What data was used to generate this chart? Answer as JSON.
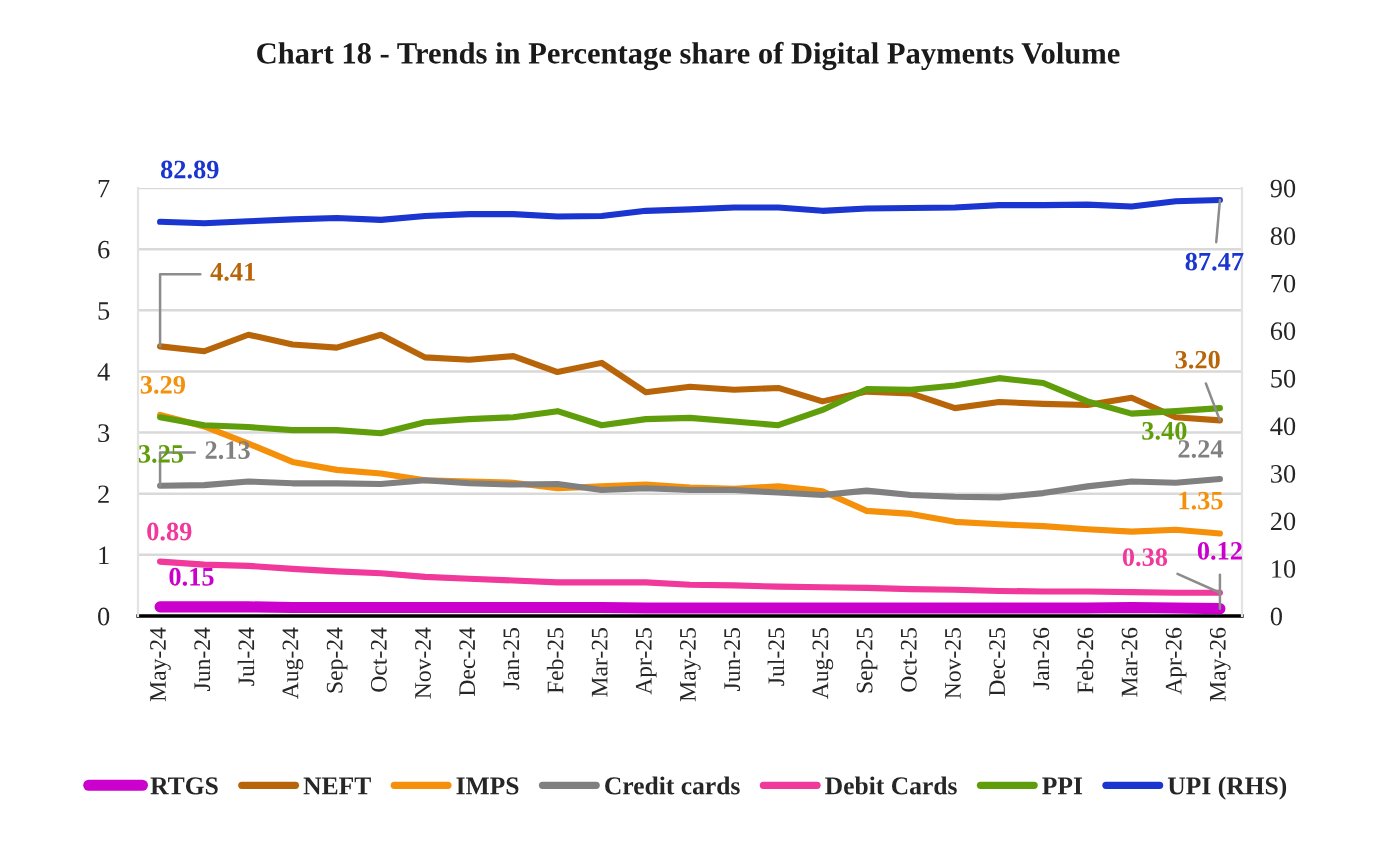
{
  "chart_data": {
    "type": "line",
    "title": "Chart 18 - Trends in Percentage share of Digital Payments Volume",
    "categories": [
      "May-24",
      "Jun-24",
      "Jul-24",
      "Aug-24",
      "Sep-24",
      "Oct-24",
      "Nov-24",
      "Dec-24",
      "Jan-25",
      "Feb-25",
      "Mar-25",
      "Apr-25",
      "May-25",
      "Jun-25",
      "Jul-25",
      "Aug-25",
      "Sep-25",
      "Oct-25",
      "Nov-25",
      "Dec-25",
      "Jan-26",
      "Feb-26",
      "Mar-26",
      "Apr-26",
      "May-26"
    ],
    "ylim": [
      0,
      7
    ],
    "yticks": [
      0,
      1,
      2,
      3,
      4,
      5,
      6,
      7
    ],
    "y2lim": [
      0,
      90
    ],
    "y2ticks": [
      0,
      10,
      20,
      30,
      40,
      50,
      60,
      70,
      80,
      90
    ],
    "grid": "y",
    "legend": "bottom",
    "line_style": "solid",
    "series": [
      {
        "name": "RTGS",
        "color": "#cc00cc",
        "values": [
          0.15,
          0.15,
          0.15,
          0.14,
          0.14,
          0.14,
          0.14,
          0.14,
          0.14,
          0.14,
          0.14,
          0.13,
          0.13,
          0.13,
          0.13,
          0.13,
          0.13,
          0.13,
          0.13,
          0.13,
          0.13,
          0.13,
          0.14,
          0.13,
          0.12
        ],
        "value_labels": [
          "0.15",
          null,
          null,
          null,
          null,
          null,
          null,
          null,
          null,
          null,
          null,
          null,
          null,
          null,
          null,
          null,
          null,
          null,
          null,
          null,
          null,
          null,
          null,
          null,
          "0.12"
        ]
      },
      {
        "name": "NEFT",
        "color": "#b8650a",
        "values": [
          4.41,
          4.33,
          4.6,
          4.44,
          4.39,
          4.6,
          4.23,
          4.19,
          4.25,
          3.99,
          4.14,
          3.66,
          3.75,
          3.7,
          3.73,
          3.51,
          3.67,
          3.64,
          3.4,
          3.5,
          3.47,
          3.45,
          3.57,
          3.25,
          3.2
        ],
        "value_labels": [
          "4.41",
          null,
          null,
          null,
          null,
          null,
          null,
          null,
          null,
          null,
          null,
          null,
          null,
          null,
          null,
          null,
          null,
          null,
          null,
          null,
          null,
          null,
          null,
          null,
          "3.20"
        ]
      },
      {
        "name": "IMPS",
        "color": "#f5900a",
        "values": [
          3.29,
          3.1,
          2.82,
          2.52,
          2.39,
          2.33,
          2.22,
          2.2,
          2.18,
          2.09,
          2.12,
          2.15,
          2.1,
          2.08,
          2.12,
          2.04,
          1.72,
          1.67,
          1.54,
          1.5,
          1.47,
          1.42,
          1.38,
          1.41,
          1.35
        ],
        "value_labels": [
          "3.29",
          null,
          null,
          null,
          null,
          null,
          null,
          null,
          null,
          null,
          null,
          null,
          null,
          null,
          null,
          null,
          null,
          null,
          null,
          null,
          null,
          null,
          null,
          null,
          "1.35"
        ]
      },
      {
        "name": "Credit cards",
        "color": "#808080",
        "values": [
          2.13,
          2.14,
          2.2,
          2.17,
          2.17,
          2.16,
          2.22,
          2.17,
          2.15,
          2.16,
          2.06,
          2.09,
          2.06,
          2.06,
          2.02,
          1.98,
          2.05,
          1.98,
          1.95,
          1.94,
          2.01,
          2.12,
          2.2,
          2.18,
          2.24
        ],
        "value_labels": [
          "2.13",
          null,
          null,
          null,
          null,
          null,
          null,
          null,
          null,
          null,
          null,
          null,
          null,
          null,
          null,
          null,
          null,
          null,
          null,
          null,
          null,
          null,
          null,
          null,
          "2.24"
        ]
      },
      {
        "name": "Debit Cards",
        "color": "#f0399a",
        "values": [
          0.89,
          0.84,
          0.82,
          0.77,
          0.73,
          0.7,
          0.64,
          0.61,
          0.58,
          0.55,
          0.55,
          0.55,
          0.51,
          0.5,
          0.48,
          0.47,
          0.46,
          0.44,
          0.43,
          0.41,
          0.4,
          0.4,
          0.39,
          0.38,
          0.38
        ],
        "value_labels": [
          "0.89",
          null,
          null,
          null,
          null,
          null,
          null,
          null,
          null,
          null,
          null,
          null,
          null,
          null,
          null,
          null,
          null,
          null,
          null,
          null,
          null,
          null,
          null,
          null,
          "0.38"
        ]
      },
      {
        "name": "PPI",
        "color": "#5f9e0a",
        "values": [
          3.25,
          3.12,
          3.09,
          3.04,
          3.04,
          2.99,
          3.17,
          3.22,
          3.25,
          3.35,
          3.12,
          3.22,
          3.24,
          3.18,
          3.12,
          3.37,
          3.71,
          3.7,
          3.77,
          3.89,
          3.81,
          3.51,
          3.31,
          3.35,
          3.4
        ],
        "value_labels": [
          "3.25",
          null,
          null,
          null,
          null,
          null,
          null,
          null,
          null,
          null,
          null,
          null,
          null,
          null,
          null,
          null,
          null,
          null,
          null,
          null,
          null,
          null,
          null,
          null,
          "3.40"
        ]
      },
      {
        "name": "UPI (RHS)",
        "color": "#1a35d0",
        "axis": "y2",
        "values": [
          82.89,
          82.6,
          83.0,
          83.4,
          83.7,
          83.3,
          84.1,
          84.5,
          84.5,
          84.0,
          84.1,
          85.2,
          85.5,
          85.9,
          85.9,
          85.2,
          85.7,
          85.8,
          85.9,
          86.4,
          86.4,
          86.5,
          86.1,
          87.2,
          87.47
        ],
        "value_labels": [
          "82.89",
          null,
          null,
          null,
          null,
          null,
          null,
          null,
          null,
          null,
          null,
          null,
          null,
          null,
          null,
          null,
          null,
          null,
          null,
          null,
          null,
          null,
          null,
          null,
          "87.47"
        ]
      }
    ]
  }
}
